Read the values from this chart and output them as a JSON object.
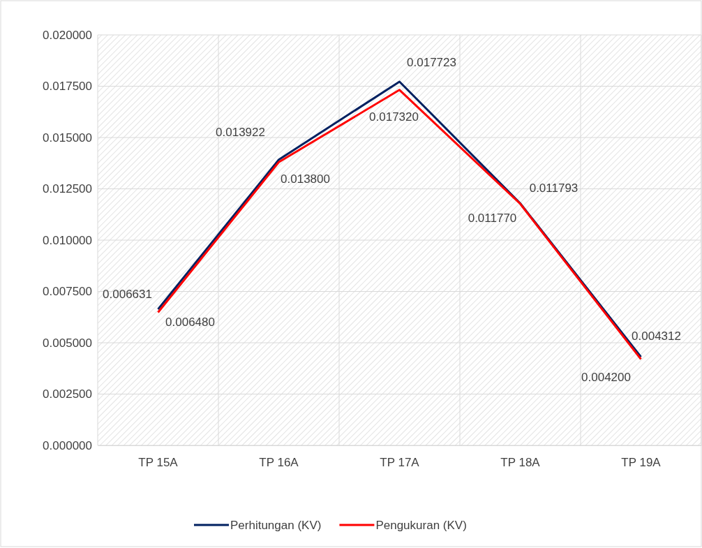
{
  "chart_data": {
    "type": "line",
    "categories": [
      "TP 15A",
      "TP 16A",
      "TP 17A",
      "TP 18A",
      "TP 19A"
    ],
    "series": [
      {
        "name": "Perhitungan (KV)",
        "color": "#002060",
        "values": [
          0.006631,
          0.013922,
          0.017723,
          0.011793,
          0.004312
        ],
        "value_labels": [
          "0.006631",
          "0.013922",
          "0.017723",
          "0.011793",
          "0.004312"
        ]
      },
      {
        "name": "Pengukuran (KV)",
        "color": "#ff0000",
        "values": [
          0.00648,
          0.0138,
          0.01732,
          0.01177,
          0.0042
        ],
        "value_labels": [
          "0.006480",
          "0.013800",
          "0.017320",
          "0.011770",
          "0.004200"
        ]
      }
    ],
    "ylim": [
      0,
      0.02
    ],
    "yticks": [
      {
        "value": 0,
        "label": "0.000000"
      },
      {
        "value": 0.0025,
        "label": "0.002500"
      },
      {
        "value": 0.005,
        "label": "0.005000"
      },
      {
        "value": 0.0075,
        "label": "0.007500"
      },
      {
        "value": 0.01,
        "label": "0.010000"
      },
      {
        "value": 0.0125,
        "label": "0.012500"
      },
      {
        "value": 0.015,
        "label": "0.015000"
      },
      {
        "value": 0.0175,
        "label": "0.017500"
      },
      {
        "value": 0.02,
        "label": "0.020000"
      }
    ],
    "grid": true,
    "legend": "bottom",
    "marker": "none",
    "line_style": "solid"
  }
}
